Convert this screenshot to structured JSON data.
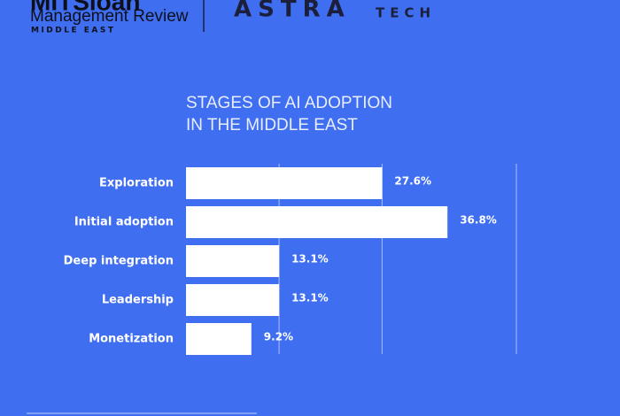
{
  "header": {
    "logo_top": "MITSloan",
    "logo_main": "Management Review",
    "logo_sub": "MIDDLE EAST",
    "partner_main": "ASTRA",
    "partner_sub": "TECH"
  },
  "chart_data": {
    "type": "bar",
    "orientation": "horizontal",
    "title": [
      "STAGES OF AI ADOPTION",
      "IN THE MIDDLE EAST"
    ],
    "categories": [
      "Exploration",
      "Initial adoption",
      "Deep integration",
      "Leadership",
      "Monetization"
    ],
    "values": [
      27.6,
      36.8,
      13.1,
      13.1,
      9.2
    ],
    "value_labels": [
      "27.6%",
      "36.8%",
      "13.1%",
      "13.1%",
      "9.2%"
    ],
    "color": "#ffffff",
    "xlim": [
      0,
      46.5
    ],
    "xticks": [
      13.1,
      27.6,
      46.5
    ],
    "grid": true
  }
}
